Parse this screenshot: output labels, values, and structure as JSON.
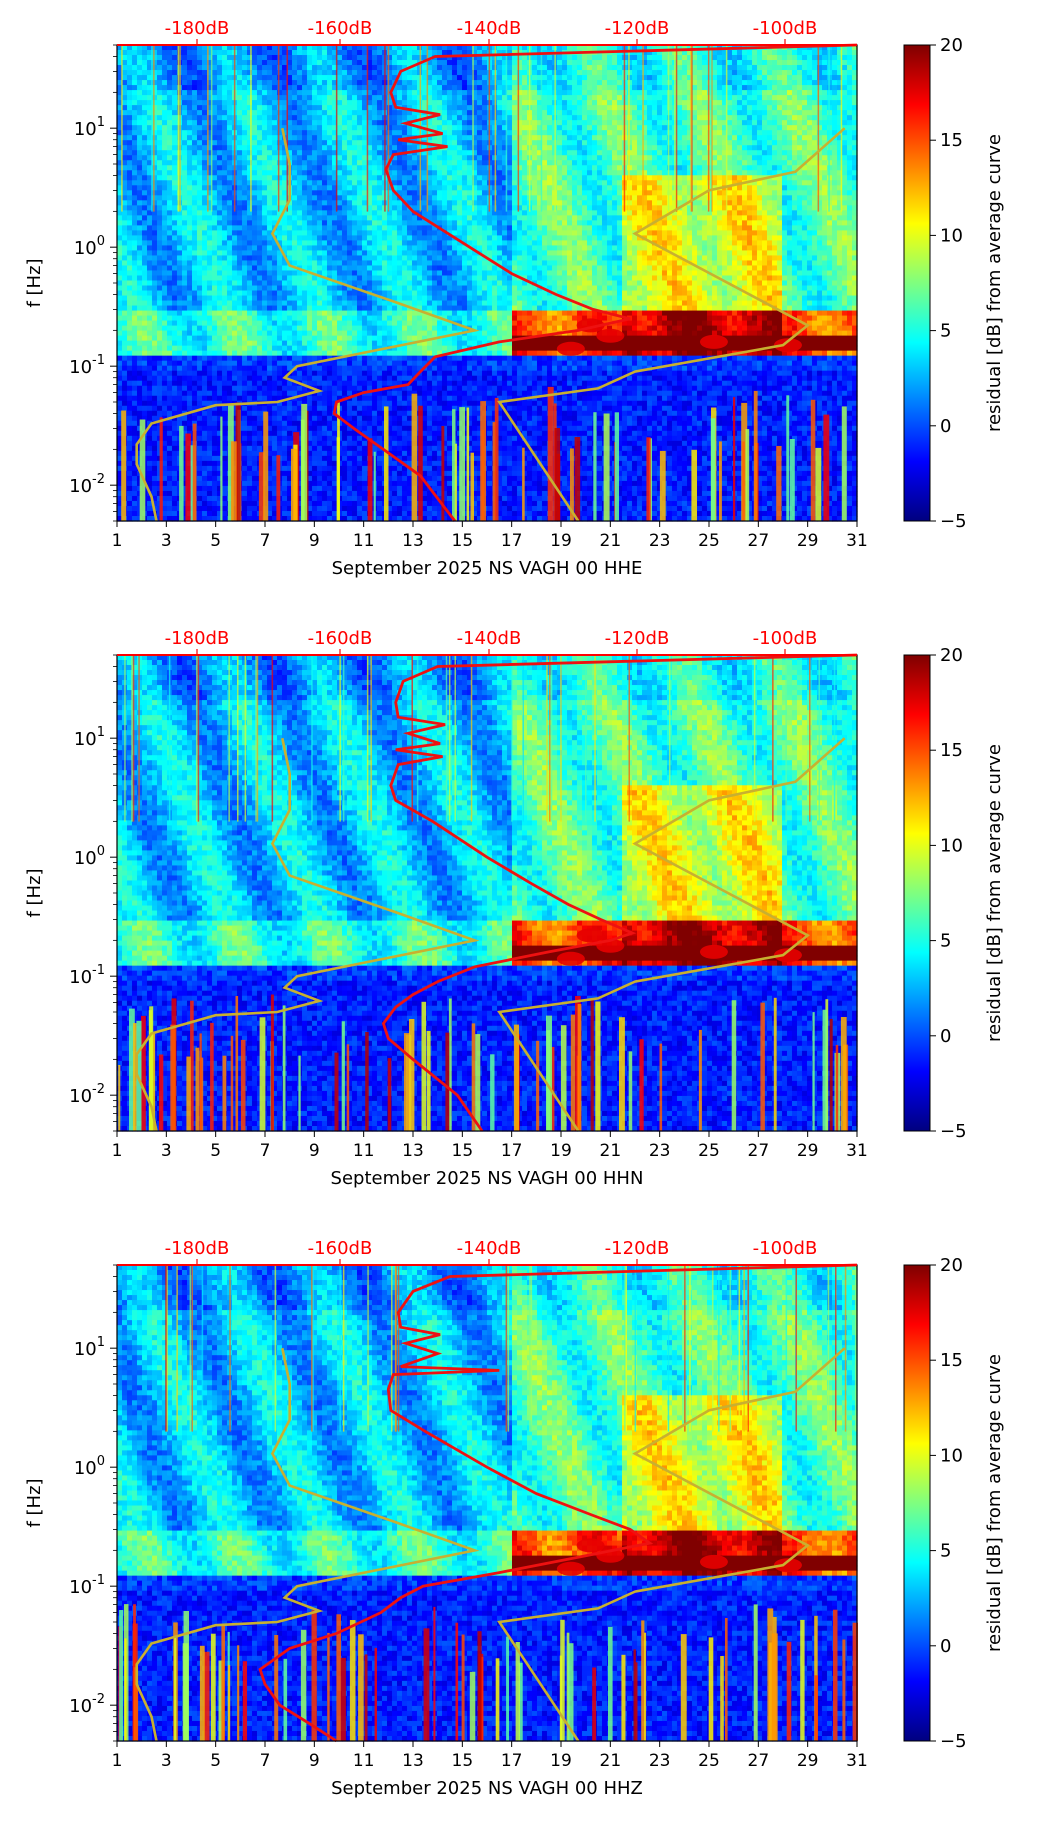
{
  "colors": {
    "db_axis": "#ff0000",
    "red_curve": "#ee1111",
    "model_curve": "#c8b030",
    "jet_scale": [
      "#00007f",
      "#0000ff",
      "#007fff",
      "#00ffff",
      "#7fff7f",
      "#ffff00",
      "#ff7f00",
      "#ff0000",
      "#7f0000"
    ]
  },
  "chart_data": [
    {
      "type": "heatmap",
      "xlabel": "September 2025 NS VAGH 00 HHE",
      "ylabel": "f [Hz]",
      "x_ticks": [
        "1",
        "3",
        "5",
        "7",
        "9",
        "11",
        "13",
        "15",
        "17",
        "19",
        "21",
        "23",
        "25",
        "27",
        "29",
        "31"
      ],
      "y_ticks": [
        "10^{-2}",
        "10^{-1}",
        "10^{0}",
        "10^{1}"
      ],
      "db_ticks": [
        "-180dB",
        "-160dB",
        "-140dB",
        "-120dB",
        "-100dB"
      ],
      "colorbar_label": "residual [dB] from average curve",
      "colorbar_ticks": [
        "20",
        "15",
        "10",
        "5",
        "0",
        "−5"
      ],
      "xlim": [
        1,
        31
      ],
      "ylim_hz": [
        0.005,
        50
      ],
      "colorbar_range": [
        -5,
        20
      ],
      "y_scale": "log",
      "red_curve": [
        [
          0.005,
          14.7
        ],
        [
          0.012,
          13.3
        ],
        [
          0.02,
          11.8
        ],
        [
          0.03,
          10.6
        ],
        [
          0.04,
          9.8
        ],
        [
          0.05,
          9.9
        ],
        [
          0.06,
          11.0
        ],
        [
          0.07,
          12.8
        ],
        [
          0.09,
          13.3
        ],
        [
          0.12,
          13.9
        ],
        [
          0.16,
          16.5
        ],
        [
          0.2,
          19.7
        ],
        [
          0.25,
          21.8
        ],
        [
          0.3,
          20.3
        ],
        [
          0.4,
          18.8
        ],
        [
          0.6,
          17.0
        ],
        [
          1.0,
          15.3
        ],
        [
          2.0,
          13.0
        ],
        [
          3.0,
          12.2
        ],
        [
          4.5,
          11.9
        ],
        [
          6.0,
          12.2
        ],
        [
          7.0,
          14.4
        ],
        [
          8.0,
          12.4
        ],
        [
          9.0,
          14.2
        ],
        [
          11.0,
          12.7
        ],
        [
          13.0,
          14.1
        ],
        [
          15.0,
          12.3
        ],
        [
          20.0,
          12.1
        ],
        [
          30.0,
          12.5
        ],
        [
          40.0,
          13.9
        ],
        [
          50.0,
          31.0
        ]
      ],
      "model_curve": [
        [
          0.005,
          2.6
        ],
        [
          0.008,
          2.4
        ],
        [
          0.015,
          1.8
        ],
        [
          0.022,
          1.8
        ],
        [
          0.033,
          2.4
        ],
        [
          0.047,
          5.0
        ],
        [
          0.05,
          7.5
        ],
        [
          0.062,
          9.2
        ],
        [
          0.08,
          7.8
        ],
        [
          0.1,
          8.3
        ],
        [
          0.2,
          15.5
        ],
        [
          0.35,
          12.2
        ],
        [
          0.7,
          8.0
        ],
        [
          1.3,
          7.3
        ],
        [
          2.5,
          8.0
        ],
        [
          5.0,
          8.0
        ],
        [
          10.0,
          7.7
        ]
      ],
      "model_curve_right": [
        [
          0.005,
          19.7
        ],
        [
          0.05,
          16.5
        ],
        [
          0.065,
          20.5
        ],
        [
          0.09,
          22.0
        ],
        [
          0.15,
          28.0
        ],
        [
          0.22,
          29.0
        ],
        [
          1.3,
          22.0
        ],
        [
          3.0,
          25.0
        ],
        [
          4.3,
          28.5
        ],
        [
          10.0,
          30.5
        ]
      ]
    },
    {
      "type": "heatmap",
      "xlabel": "September 2025 NS VAGH 00 HHN",
      "ylabel": "f [Hz]",
      "x_ticks": [
        "1",
        "3",
        "5",
        "7",
        "9",
        "11",
        "13",
        "15",
        "17",
        "19",
        "21",
        "23",
        "25",
        "27",
        "29",
        "31"
      ],
      "y_ticks": [
        "10^{-2}",
        "10^{-1}",
        "10^{0}",
        "10^{1}"
      ],
      "db_ticks": [
        "-180dB",
        "-160dB",
        "-140dB",
        "-120dB",
        "-100dB"
      ],
      "colorbar_label": "residual [dB] from average curve",
      "colorbar_ticks": [
        "20",
        "15",
        "10",
        "5",
        "0",
        "−5"
      ],
      "xlim": [
        1,
        31
      ],
      "ylim_hz": [
        0.005,
        50
      ],
      "colorbar_range": [
        -5,
        20
      ],
      "y_scale": "log",
      "red_curve": [
        [
          0.005,
          15.8
        ],
        [
          0.01,
          14.8
        ],
        [
          0.02,
          13.0
        ],
        [
          0.03,
          12.0
        ],
        [
          0.04,
          11.8
        ],
        [
          0.055,
          12.3
        ],
        [
          0.07,
          13.0
        ],
        [
          0.09,
          14.0
        ],
        [
          0.12,
          15.5
        ],
        [
          0.16,
          18.5
        ],
        [
          0.2,
          21.0
        ],
        [
          0.23,
          21.9
        ],
        [
          0.3,
          20.6
        ],
        [
          0.4,
          19.3
        ],
        [
          0.6,
          17.8
        ],
        [
          1.0,
          16.0
        ],
        [
          2.0,
          13.8
        ],
        [
          3.0,
          12.3
        ],
        [
          4.0,
          12.1
        ],
        [
          6.0,
          12.4
        ],
        [
          7.0,
          14.2
        ],
        [
          8.0,
          12.3
        ],
        [
          9.0,
          14.1
        ],
        [
          11.0,
          12.8
        ],
        [
          13.0,
          14.3
        ],
        [
          15.0,
          12.4
        ],
        [
          20.0,
          12.3
        ],
        [
          30.0,
          12.6
        ],
        [
          40.0,
          14.0
        ],
        [
          50.0,
          31.0
        ]
      ],
      "model_curve": [
        [
          0.005,
          2.6
        ],
        [
          0.008,
          2.4
        ],
        [
          0.015,
          1.8
        ],
        [
          0.022,
          1.8
        ],
        [
          0.033,
          2.4
        ],
        [
          0.047,
          5.0
        ],
        [
          0.05,
          7.5
        ],
        [
          0.062,
          9.2
        ],
        [
          0.08,
          7.8
        ],
        [
          0.1,
          8.3
        ],
        [
          0.2,
          15.5
        ],
        [
          0.35,
          12.2
        ],
        [
          0.7,
          8.0
        ],
        [
          1.3,
          7.3
        ],
        [
          2.5,
          8.0
        ],
        [
          5.0,
          8.0
        ],
        [
          10.0,
          7.7
        ]
      ],
      "model_curve_right": [
        [
          0.005,
          19.7
        ],
        [
          0.05,
          16.5
        ],
        [
          0.065,
          20.5
        ],
        [
          0.09,
          22.0
        ],
        [
          0.15,
          28.0
        ],
        [
          0.22,
          29.0
        ],
        [
          1.3,
          22.0
        ],
        [
          3.0,
          25.0
        ],
        [
          4.3,
          28.5
        ],
        [
          10.0,
          30.5
        ]
      ]
    },
    {
      "type": "heatmap",
      "xlabel": "September 2025 NS VAGH 00 HHZ",
      "ylabel": "f [Hz]",
      "x_ticks": [
        "1",
        "3",
        "5",
        "7",
        "9",
        "11",
        "13",
        "15",
        "17",
        "19",
        "21",
        "23",
        "25",
        "27",
        "29",
        "31"
      ],
      "y_ticks": [
        "10^{-2}",
        "10^{-1}",
        "10^{0}",
        "10^{1}"
      ],
      "db_ticks": [
        "-180dB",
        "-160dB",
        "-140dB",
        "-120dB",
        "-100dB"
      ],
      "colorbar_label": "residual [dB] from average curve",
      "colorbar_ticks": [
        "20",
        "15",
        "10",
        "5",
        "0",
        "−5"
      ],
      "xlim": [
        1,
        31
      ],
      "ylim_hz": [
        0.005,
        50
      ],
      "colorbar_range": [
        -5,
        20
      ],
      "y_scale": "log",
      "red_curve": [
        [
          0.005,
          9.9
        ],
        [
          0.007,
          8.8
        ],
        [
          0.01,
          7.6
        ],
        [
          0.015,
          7.0
        ],
        [
          0.02,
          6.8
        ],
        [
          0.03,
          8.0
        ],
        [
          0.04,
          9.9
        ],
        [
          0.06,
          11.7
        ],
        [
          0.08,
          12.5
        ],
        [
          0.1,
          13.4
        ],
        [
          0.13,
          16.5
        ],
        [
          0.18,
          20.0
        ],
        [
          0.23,
          22.6
        ],
        [
          0.3,
          21.8
        ],
        [
          0.4,
          20.2
        ],
        [
          0.6,
          18.0
        ],
        [
          1.0,
          16.0
        ],
        [
          2.0,
          13.5
        ],
        [
          3.0,
          12.1
        ],
        [
          4.5,
          12.0
        ],
        [
          6.0,
          12.2
        ],
        [
          6.5,
          16.5
        ],
        [
          7.0,
          12.5
        ],
        [
          9.0,
          14.0
        ],
        [
          11.0,
          12.7
        ],
        [
          13.0,
          14.1
        ],
        [
          15.0,
          12.5
        ],
        [
          20.0,
          12.4
        ],
        [
          30.0,
          13.0
        ],
        [
          40.0,
          14.5
        ],
        [
          50.0,
          31.0
        ]
      ],
      "model_curve": [
        [
          0.005,
          2.6
        ],
        [
          0.008,
          2.4
        ],
        [
          0.015,
          1.8
        ],
        [
          0.022,
          1.8
        ],
        [
          0.033,
          2.4
        ],
        [
          0.047,
          5.0
        ],
        [
          0.05,
          7.5
        ],
        [
          0.062,
          9.2
        ],
        [
          0.08,
          7.8
        ],
        [
          0.1,
          8.3
        ],
        [
          0.2,
          15.5
        ],
        [
          0.35,
          12.2
        ],
        [
          0.7,
          8.0
        ],
        [
          1.3,
          7.3
        ],
        [
          2.5,
          8.0
        ],
        [
          5.0,
          8.0
        ],
        [
          10.0,
          7.7
        ]
      ],
      "model_curve_right": [
        [
          0.005,
          19.7
        ],
        [
          0.05,
          16.5
        ],
        [
          0.065,
          20.5
        ],
        [
          0.09,
          22.0
        ],
        [
          0.15,
          28.0
        ],
        [
          0.22,
          29.0
        ],
        [
          1.3,
          22.0
        ],
        [
          3.0,
          25.0
        ],
        [
          4.3,
          28.5
        ],
        [
          10.0,
          30.5
        ]
      ]
    }
  ]
}
